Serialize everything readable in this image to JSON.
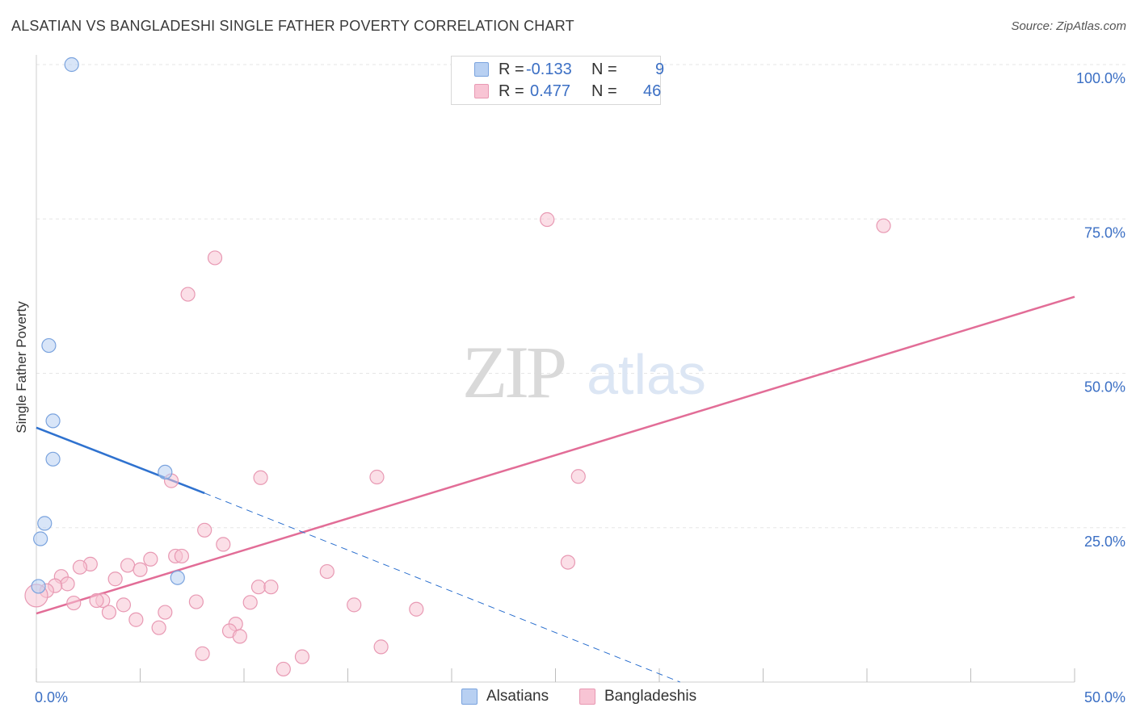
{
  "header": {
    "title": "ALSATIAN VS BANGLADESHI SINGLE FATHER POVERTY CORRELATION CHART",
    "source": "Source: ZipAtlas.com"
  },
  "watermark": {
    "zip": "ZIP",
    "atlas": "atlas"
  },
  "legend": {
    "r_label": "R =",
    "n_label": "N =",
    "items": [
      {
        "name": "Alsatians",
        "r": "-0.133",
        "n": "9"
      },
      {
        "name": "Bangladeshis",
        "r": "0.477",
        "n": "46"
      }
    ]
  },
  "colors": {
    "alsatian_fill": "#b8d0f2",
    "alsatian_stroke": "#7aa3de",
    "alsatian_line": "#2f72cf",
    "bangladeshi_fill": "#f8c4d4",
    "bangladeshi_stroke": "#e899b3",
    "bangladeshi_line": "#e26d97",
    "tick_label": "#3b6fc4"
  },
  "chart_data": {
    "type": "scatter",
    "title": "ALSATIAN VS BANGLADESHI SINGLE FATHER POVERTY CORRELATION CHART",
    "xlabel": "",
    "ylabel": "Single Father Poverty",
    "xlim": [
      0,
      50
    ],
    "ylim": [
      0,
      100
    ],
    "x_tick_labels": [
      "0.0%",
      "50.0%"
    ],
    "y_ticks": [
      25,
      50,
      75,
      100
    ],
    "y_tick_labels": [
      "25.0%",
      "50.0%",
      "75.0%",
      "100.0%"
    ],
    "grid": "horizontal dashed",
    "legend_position": "top-center",
    "series": [
      {
        "name": "Alsatians",
        "r": -0.133,
        "n": 9,
        "points": [
          [
            1.7,
            100.0
          ],
          [
            0.6,
            54.5
          ],
          [
            0.8,
            42.3
          ],
          [
            0.8,
            36.1
          ],
          [
            0.4,
            25.7
          ],
          [
            0.2,
            23.2
          ],
          [
            6.2,
            34.0
          ],
          [
            6.8,
            16.9
          ],
          [
            0.1,
            15.5
          ]
        ],
        "trend": {
          "x0": 0,
          "y0": 41.2,
          "x1": 8.1,
          "y1": 30.6,
          "dashed_to_x": 31.0,
          "dashed_to_y": 0.0
        }
      },
      {
        "name": "Bangladeshis",
        "r": 0.477,
        "n": 46,
        "points": [
          [
            24.6,
            74.9
          ],
          [
            40.8,
            73.9
          ],
          [
            8.6,
            68.7
          ],
          [
            7.3,
            62.8
          ],
          [
            10.8,
            33.1
          ],
          [
            16.4,
            33.2
          ],
          [
            26.1,
            33.3
          ],
          [
            6.5,
            32.6
          ],
          [
            8.1,
            24.6
          ],
          [
            9.0,
            22.3
          ],
          [
            25.6,
            19.4
          ],
          [
            6.7,
            20.4
          ],
          [
            7.0,
            20.4
          ],
          [
            5.5,
            19.9
          ],
          [
            4.4,
            18.9
          ],
          [
            5.0,
            18.2
          ],
          [
            14.0,
            17.9
          ],
          [
            2.6,
            19.1
          ],
          [
            2.1,
            18.6
          ],
          [
            1.2,
            17.1
          ],
          [
            3.8,
            16.7
          ],
          [
            1.5,
            15.9
          ],
          [
            0.9,
            15.6
          ],
          [
            0.5,
            14.8
          ],
          [
            10.7,
            15.4
          ],
          [
            11.3,
            15.4
          ],
          [
            3.2,
            13.2
          ],
          [
            2.9,
            13.2
          ],
          [
            1.8,
            12.8
          ],
          [
            7.7,
            13.0
          ],
          [
            10.3,
            12.9
          ],
          [
            4.2,
            12.5
          ],
          [
            15.3,
            12.5
          ],
          [
            18.3,
            11.8
          ],
          [
            3.5,
            11.3
          ],
          [
            6.2,
            11.3
          ],
          [
            4.8,
            10.1
          ],
          [
            9.6,
            9.4
          ],
          [
            5.9,
            8.8
          ],
          [
            9.3,
            8.3
          ],
          [
            9.8,
            7.4
          ],
          [
            16.6,
            5.7
          ],
          [
            8.0,
            4.6
          ],
          [
            12.8,
            4.1
          ],
          [
            11.9,
            2.1
          ],
          [
            0.0,
            14.0
          ]
        ],
        "trend": {
          "x0": 0,
          "y0": 11.1,
          "x1": 50.0,
          "y1": 62.4
        }
      }
    ]
  }
}
